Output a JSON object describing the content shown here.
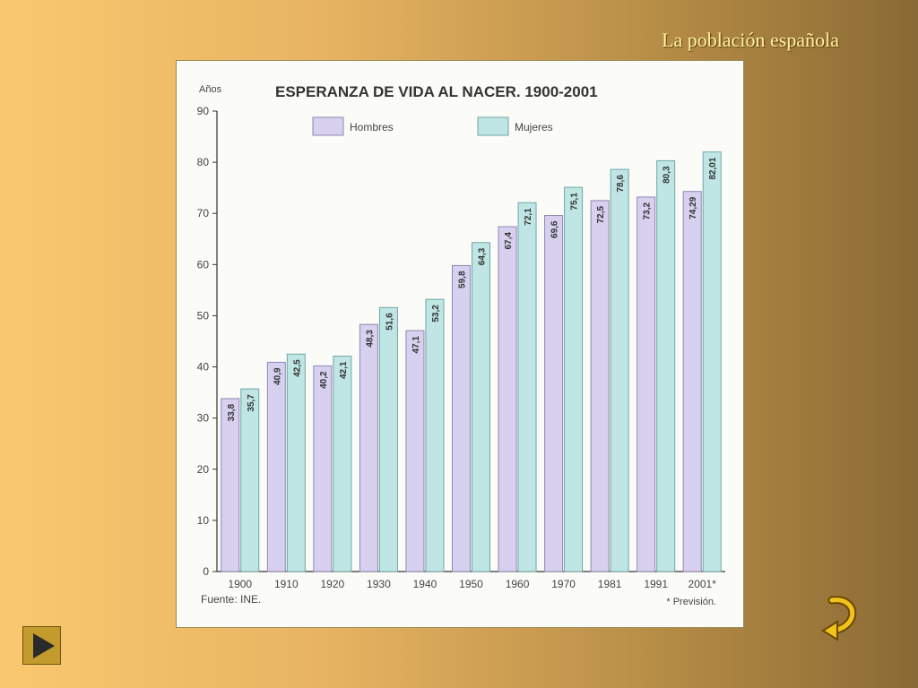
{
  "slide": {
    "title": "La población española"
  },
  "chart_data": {
    "type": "bar",
    "title": "ESPERANZA DE VIDA AL NACER. 1900-2001",
    "ylabel": "Años",
    "xlabel": "",
    "ylim": [
      0,
      90
    ],
    "yticks": [
      "0",
      "10",
      "20",
      "30",
      "40",
      "50",
      "60",
      "70",
      "80",
      "90"
    ],
    "categories": [
      "1900",
      "1910",
      "1920",
      "1930",
      "1940",
      "1950",
      "1960",
      "1970",
      "1981",
      "1991",
      "2001*"
    ],
    "series": [
      {
        "name": "Hombres",
        "color": "#d7d0ef",
        "values": [
          33.8,
          40.9,
          40.2,
          48.3,
          47.1,
          59.8,
          67.4,
          69.6,
          72.5,
          73.2,
          74.29
        ],
        "labels": [
          "33,8",
          "40,9",
          "40,2",
          "48,3",
          "47,1",
          "59,8",
          "67,4",
          "69,6",
          "72,5",
          "73,2",
          "74,29"
        ]
      },
      {
        "name": "Mujeres",
        "color": "#bfe6e4",
        "values": [
          35.7,
          42.5,
          42.1,
          51.6,
          53.2,
          64.3,
          72.1,
          75.1,
          78.6,
          80.3,
          82.01
        ],
        "labels": [
          "35,7",
          "42,5",
          "42,1",
          "51,6",
          "53,2",
          "64,3",
          "72,1",
          "75,1",
          "78,6",
          "80,3",
          "82,01"
        ]
      }
    ],
    "source": "Fuente: INE.",
    "note": "* Previsión.",
    "grid": false,
    "legend": "top"
  },
  "nav": {
    "next_icon": "play-icon",
    "back_icon": "return-arrow-icon",
    "accent": "#c39a2c"
  }
}
